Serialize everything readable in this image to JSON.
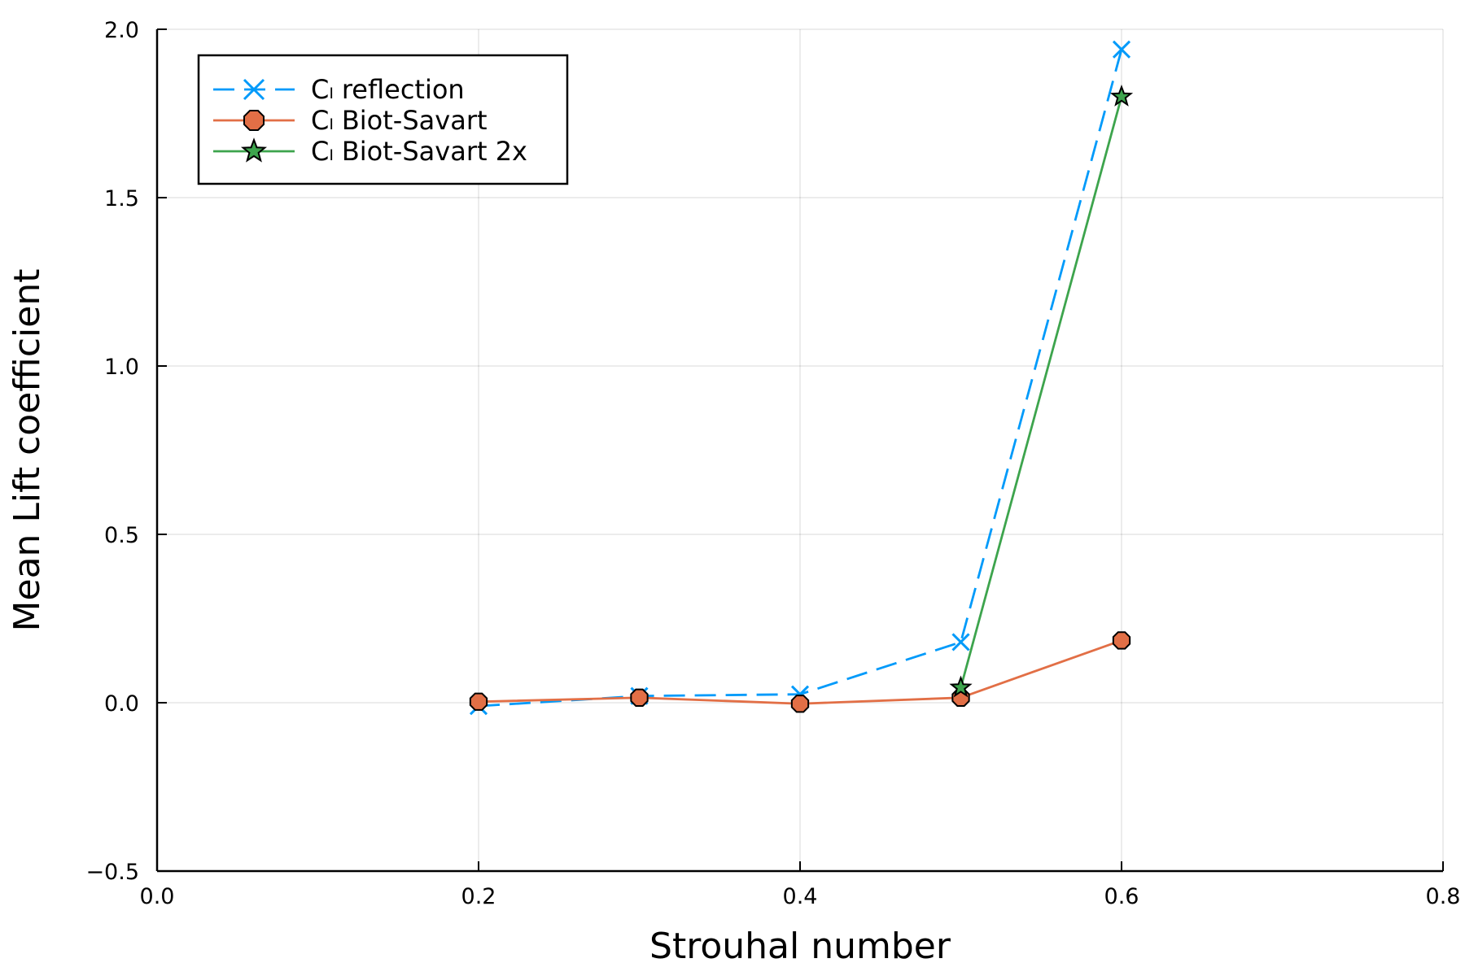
{
  "chart_data": {
    "type": "line",
    "xlabel": "Strouhal number",
    "ylabel": "Mean Lift coefficient",
    "xlim": [
      0.0,
      0.8
    ],
    "ylim": [
      -0.5,
      2.0
    ],
    "xticks": [
      "0.0",
      "0.2",
      "0.4",
      "0.6",
      "0.8"
    ],
    "yticks": [
      "−0.5",
      "0.0",
      "0.5",
      "1.0",
      "1.5",
      "2.0"
    ],
    "grid": true,
    "legend_position": "top-left",
    "series": [
      {
        "name": "Cₗ reflection",
        "color": "#009AFA",
        "line_style": "dashed",
        "marker": "x",
        "x": [
          0.2,
          0.3,
          0.4,
          0.5,
          0.6
        ],
        "y": [
          -0.01,
          0.02,
          0.025,
          0.18,
          1.94
        ]
      },
      {
        "name": "Cₗ Biot-Savart",
        "color": "#E26F46",
        "line_style": "solid",
        "marker": "circle",
        "x": [
          0.2,
          0.3,
          0.4,
          0.5,
          0.6
        ],
        "y": [
          0.003,
          0.015,
          -0.003,
          0.015,
          0.185
        ]
      },
      {
        "name": "Cₗ Biot-Savart 2x",
        "color": "#3DA44D",
        "line_style": "solid",
        "marker": "star",
        "x": [
          0.5,
          0.6
        ],
        "y": [
          0.045,
          1.8
        ]
      }
    ]
  }
}
